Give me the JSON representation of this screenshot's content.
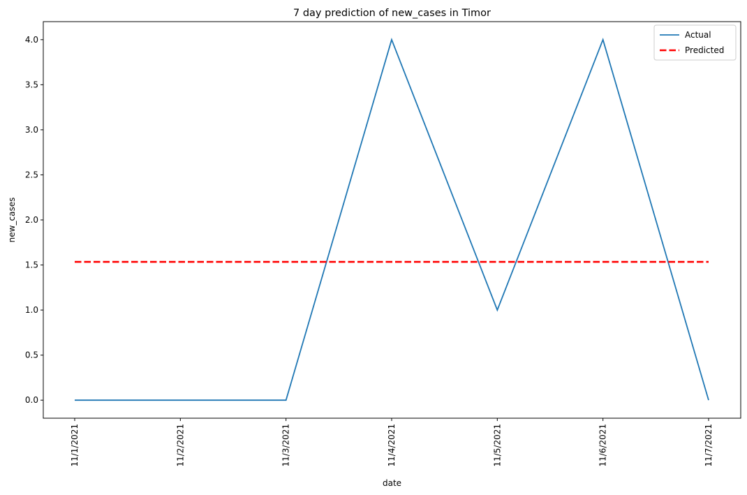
{
  "chart_data": {
    "type": "line",
    "title": "7 day prediction of new_cases in Timor",
    "xlabel": "date",
    "ylabel": "new_cases",
    "x": [
      "11/1/2021",
      "11/2/2021",
      "11/3/2021",
      "11/4/2021",
      "11/5/2021",
      "11/6/2021",
      "11/7/2021"
    ],
    "series": [
      {
        "name": "Actual",
        "values": [
          0,
          0,
          0,
          4,
          1,
          4,
          0
        ],
        "color": "#1f77b4",
        "style": "solid"
      },
      {
        "name": "Predicted",
        "values": [
          1.535,
          1.535,
          1.535,
          1.535,
          1.535,
          1.535,
          1.535
        ],
        "color": "#ff0000",
        "style": "dashed"
      }
    ],
    "ylim": [
      -0.2,
      4.2
    ],
    "yticks": [
      "0.0",
      "0.5",
      "1.0",
      "1.5",
      "2.0",
      "2.5",
      "3.0",
      "3.5",
      "4.0"
    ],
    "grid": false,
    "legend": "top-right"
  }
}
